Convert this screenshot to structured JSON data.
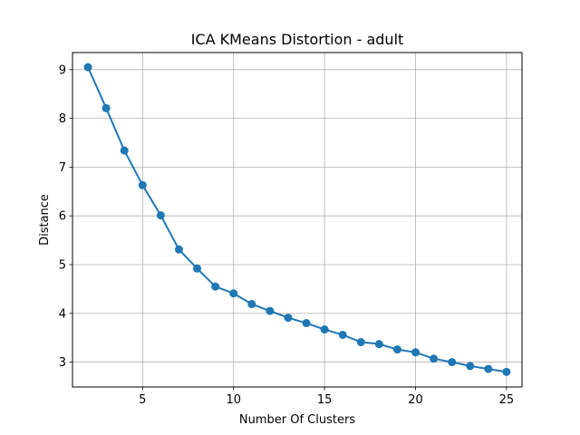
{
  "chart_data": {
    "type": "line",
    "title": "ICA KMeans Distortion - adult",
    "xlabel": "Number Of Clusters",
    "ylabel": "Distance",
    "xlim": [
      1.15,
      25.85
    ],
    "ylim": [
      2.49,
      9.35
    ],
    "xticks": [
      5,
      10,
      15,
      20,
      25
    ],
    "yticks": [
      3,
      4,
      5,
      6,
      7,
      8,
      9
    ],
    "grid": true,
    "series": [
      {
        "color": "#1f77b4",
        "marker": "circle",
        "x": [
          2,
          3,
          4,
          5,
          6,
          7,
          8,
          9,
          10,
          11,
          12,
          13,
          14,
          15,
          16,
          17,
          18,
          19,
          20,
          21,
          22,
          23,
          24,
          25
        ],
        "y": [
          9.05,
          8.21,
          7.34,
          6.63,
          6.01,
          5.31,
          4.92,
          4.55,
          4.41,
          4.19,
          4.05,
          3.91,
          3.8,
          3.67,
          3.56,
          3.41,
          3.37,
          3.26,
          3.2,
          3.07,
          3.0,
          2.92,
          2.86,
          2.8
        ]
      }
    ]
  }
}
